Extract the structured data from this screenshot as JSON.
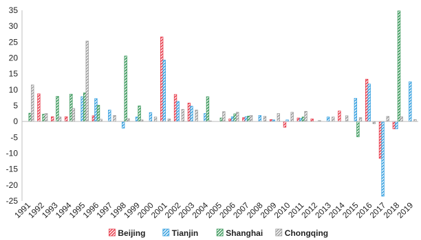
{
  "chart_data": {
    "type": "bar",
    "title": "",
    "xlabel": "",
    "ylabel": "",
    "ylim": [
      -25,
      35
    ],
    "yticks": [
      -25,
      -20,
      -15,
      -10,
      -5,
      0,
      5,
      10,
      15,
      20,
      25,
      30,
      35
    ],
    "grid": false,
    "legend_position": "bottom",
    "categories": [
      "1991",
      "1992",
      "1993",
      "1994",
      "1995",
      "1996",
      "1997",
      "1998",
      "1999",
      "2000",
      "2001",
      "2002",
      "2003",
      "2004",
      "2005",
      "2006",
      "2007",
      "2008",
      "2009",
      "2010",
      "2011",
      "2012",
      "2013",
      "2014",
      "2015",
      "2016",
      "2017",
      "2018",
      "2019"
    ],
    "series": [
      {
        "name": "Beijing",
        "color": "#e8404f",
        "pattern": "hatch",
        "values": [
          0.0,
          8.7,
          1.5,
          1.5,
          0.0,
          1.8,
          0.0,
          0.0,
          0.0,
          0.0,
          26.6,
          8.5,
          5.8,
          0.0,
          0.0,
          0.8,
          1.2,
          0.0,
          0.6,
          -1.8,
          1.1,
          0.8,
          0.0,
          3.3,
          0.0,
          13.3,
          -11.6,
          -2.3,
          0.0
        ]
      },
      {
        "name": "Tianjin",
        "color": "#3aa2e0",
        "pattern": "hatch",
        "values": [
          0.0,
          0.0,
          0.0,
          0.0,
          7.8,
          7.2,
          3.6,
          -2.1,
          1.4,
          2.8,
          19.3,
          6.3,
          4.8,
          2.5,
          0.0,
          1.5,
          1.5,
          1.9,
          0.5,
          0.5,
          1.0,
          0.0,
          1.4,
          0.0,
          7.3,
          11.8,
          -23.5,
          -2.3,
          12.5
        ]
      },
      {
        "name": "Shanghai",
        "color": "#3e9a5e",
        "pattern": "hatch",
        "values": [
          2.6,
          2.3,
          7.9,
          8.6,
          9.0,
          5.1,
          0.0,
          20.6,
          4.9,
          0.0,
          0.0,
          0.0,
          0.0,
          7.8,
          1.1,
          2.4,
          1.7,
          0.0,
          0.0,
          0.0,
          1.4,
          0.0,
          0.0,
          0.0,
          -4.8,
          0.0,
          0.0,
          34.8,
          0.0
        ]
      },
      {
        "name": "Chongqing",
        "color": "#9e9e9e",
        "pattern": "hatch",
        "values": [
          11.5,
          2.5,
          1.4,
          4.1,
          25.3,
          0.7,
          1.9,
          0.9,
          0.5,
          1.4,
          0.8,
          3.8,
          3.6,
          0.2,
          3.1,
          2.9,
          1.9,
          1.6,
          2.5,
          2.9,
          3.2,
          0.3,
          1.4,
          1.8,
          1.2,
          -0.7,
          1.6,
          1.5,
          0.6
        ]
      }
    ]
  }
}
